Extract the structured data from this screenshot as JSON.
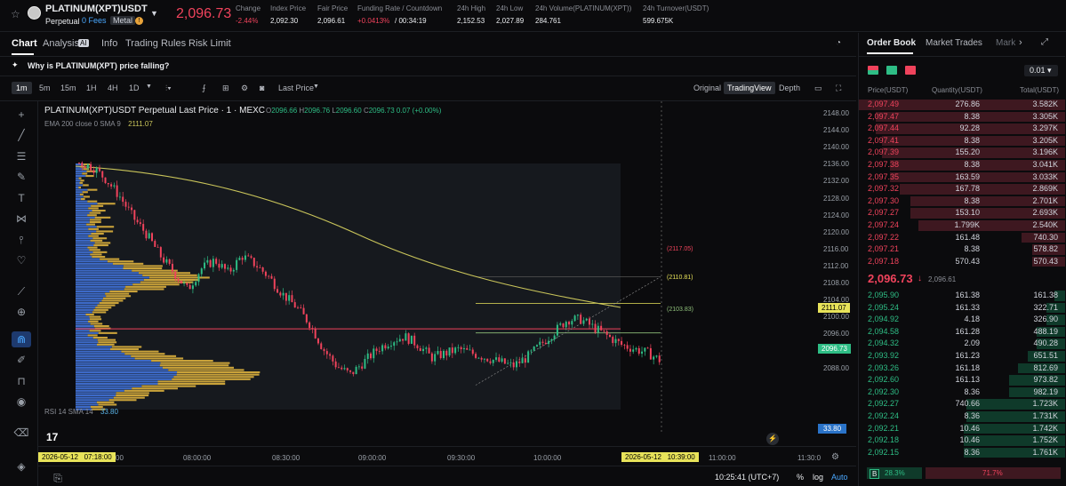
{
  "header": {
    "symbol": "PLATINUM(XPT)USDT",
    "type": "Perpetual",
    "fees": "0 Fees",
    "tag": "Metal",
    "last_price": "2,096.73",
    "stats": [
      {
        "label": "Change",
        "value": "-2.44%",
        "color": "red"
      },
      {
        "label": "Index Price",
        "value": "2,092.30",
        "color": "white"
      },
      {
        "label": "Fair Price",
        "value": "2,096.61",
        "color": "white"
      },
      {
        "label": "Funding Rate / Countdown",
        "value": "+0.0413%",
        "value2": "/ 00:34:19",
        "color": "red"
      },
      {
        "label": "24h High",
        "value": "2,152.53",
        "color": "white"
      },
      {
        "label": "24h Low",
        "value": "2,027.89",
        "color": "white"
      },
      {
        "label": "24h Volume(PLATINUM(XPT))",
        "value": "284.761",
        "color": "white"
      },
      {
        "label": "24h Turnover(USDT)",
        "value": "599.675K",
        "color": "white"
      }
    ]
  },
  "tabs": {
    "chart": "Chart",
    "analysis": "Analysis",
    "ai": "AI",
    "info": "Info",
    "rules": "Trading Rules",
    "risk": "Risk Limit"
  },
  "question": "Why is PLATINUM(XPT) price falling?",
  "toolbar": {
    "timeframes": [
      "1m",
      "5m",
      "15m",
      "1H",
      "4H",
      "1D"
    ],
    "last_price": "Last Price",
    "views": [
      "Original",
      "TradingView",
      "Depth"
    ]
  },
  "chart": {
    "legend_title": "PLATINUM(XPT)USDT Perpetual Last Price · 1 · MEXC",
    "ohlc": {
      "o_l": "O",
      "o": "2096.66",
      "h_l": "H",
      "h": "2096.76",
      "l_l": "L",
      "l": "2096.60",
      "c_l": "C",
      "c": "2096.73",
      "chg": "0.07 (+0.00%)"
    },
    "ema_label": "EMA 200 close 0 SMA 9",
    "ema_value": "2111.07",
    "y_ticks": [
      "2148.00",
      "2144.00",
      "2140.00",
      "2136.00",
      "2132.00",
      "2128.00",
      "2124.00",
      "2120.00",
      "2116.00",
      "2112.00",
      "2108.00",
      "2104.00",
      "2100.00",
      "2096.00",
      "2092.00",
      "2088.00"
    ],
    "fib_labels": [
      "(2117.05)",
      "(2110.81)",
      "(2103.83)"
    ],
    "ema_tag": "2111.07",
    "price_tag": "2096.73",
    "rsi_label": "RSI 14 SMA 14",
    "rsi_value": "33.80",
    "rsi_tag": "33.80",
    "x_ticks": [
      "08:00:00",
      "08:30:00",
      "09:00:00",
      "09:30:00",
      "10:00:00",
      "11:00:00",
      "11:30:0"
    ],
    "x_start_date": "2026-05-12",
    "x_start_time": "07:18:00",
    "x_start_tail": "00",
    "x_cursor_date": "2026-05-12",
    "x_cursor_time": "10:39:00",
    "clock": "10:25:41 (UTC+7)",
    "pct": "%",
    "log": "log",
    "auto": "Auto"
  },
  "orderbook": {
    "tabs": [
      "Order Book",
      "Market Trades",
      "Mark"
    ],
    "step": "0.01",
    "headers": [
      "Price(USDT)",
      "Quantity(USDT)",
      "Total(USDT)"
    ],
    "asks": [
      {
        "p": "2,097.49",
        "q": "276.86",
        "t": "3.582K",
        "d": 1.0
      },
      {
        "p": "2,097.47",
        "q": "8.38",
        "t": "3.305K",
        "d": 0.92
      },
      {
        "p": "2,097.44",
        "q": "92.28",
        "t": "3.297K",
        "d": 0.92
      },
      {
        "p": "2,097.41",
        "q": "8.38",
        "t": "3.205K",
        "d": 0.89
      },
      {
        "p": "2,097.39",
        "q": "155.20",
        "t": "3.196K",
        "d": 0.89
      },
      {
        "p": "2,097.38",
        "q": "8.38",
        "t": "3.041K",
        "d": 0.85
      },
      {
        "p": "2,097.35",
        "q": "163.59",
        "t": "3.033K",
        "d": 0.85
      },
      {
        "p": "2,097.32",
        "q": "167.78",
        "t": "2.869K",
        "d": 0.8
      },
      {
        "p": "2,097.30",
        "q": "8.38",
        "t": "2.701K",
        "d": 0.75
      },
      {
        "p": "2,097.27",
        "q": "153.10",
        "t": "2.693K",
        "d": 0.75
      },
      {
        "p": "2,097.24",
        "q": "1.799K",
        "t": "2.540K",
        "d": 0.71
      },
      {
        "p": "2,097.22",
        "q": "161.48",
        "t": "740.30",
        "d": 0.21
      },
      {
        "p": "2,097.21",
        "q": "8.38",
        "t": "578.82",
        "d": 0.16
      },
      {
        "p": "2,097.18",
        "q": "570.43",
        "t": "570.43",
        "d": 0.16
      }
    ],
    "mid_price": "2,096.73",
    "mid_arrow": "↓",
    "mid_fair": "2,096.61",
    "bids": [
      {
        "p": "2,095.90",
        "q": "161.38",
        "t": "161.38",
        "d": 0.05
      },
      {
        "p": "2,095.24",
        "q": "161.33",
        "t": "322.71",
        "d": 0.09
      },
      {
        "p": "2,094.92",
        "q": "4.18",
        "t": "326.90",
        "d": 0.09
      },
      {
        "p": "2,094.58",
        "q": "161.28",
        "t": "488.19",
        "d": 0.14
      },
      {
        "p": "2,094.32",
        "q": "2.09",
        "t": "490.28",
        "d": 0.14
      },
      {
        "p": "2,093.92",
        "q": "161.23",
        "t": "651.51",
        "d": 0.18
      },
      {
        "p": "2,093.26",
        "q": "161.18",
        "t": "812.69",
        "d": 0.23
      },
      {
        "p": "2,092.60",
        "q": "161.13",
        "t": "973.82",
        "d": 0.27
      },
      {
        "p": "2,092.30",
        "q": "8.36",
        "t": "982.19",
        "d": 0.27
      },
      {
        "p": "2,092.27",
        "q": "740.66",
        "t": "1.723K",
        "d": 0.48
      },
      {
        "p": "2,092.24",
        "q": "8.36",
        "t": "1.731K",
        "d": 0.48
      },
      {
        "p": "2,092.21",
        "q": "10.46",
        "t": "1.742K",
        "d": 0.49
      },
      {
        "p": "2,092.18",
        "q": "10.46",
        "t": "1.752K",
        "d": 0.49
      },
      {
        "p": "2,092.15",
        "q": "8.36",
        "t": "1.761K",
        "d": 0.49
      }
    ],
    "buy_label": "B",
    "buy_pct": "28.3%",
    "sell_pct": "71.7%",
    "buy_ratio": 0.283
  },
  "colors": {
    "red": "#f0435c",
    "green": "#2ebd85",
    "ema": "#c9c45a",
    "rsi": "#5ab4e8",
    "vol_blue": "#3d6ac8",
    "vol_gold": "#c9a23a"
  }
}
